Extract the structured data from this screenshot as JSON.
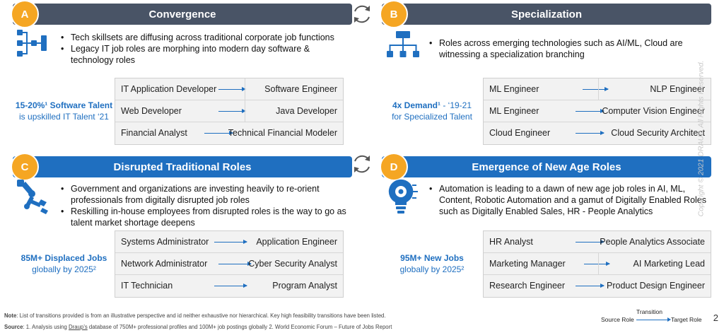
{
  "quadrants": [
    {
      "letter": "A",
      "title": "Convergence",
      "bullets": [
        "Tech skillsets are diffusing across traditional corporate job functions",
        "Legacy IT job roles are morphing into modern day software & technology roles"
      ],
      "stat_bold": "15-20%¹ Software Talent",
      "stat_rest": "is upskilled IT Talent ‘21",
      "rows": [
        {
          "source": "IT Application Developer",
          "target": "Software Engineer"
        },
        {
          "source": "Web Developer",
          "target": "Java Developer"
        },
        {
          "source": "Financial Analyst",
          "target": "Technical Financial Modeler"
        }
      ]
    },
    {
      "letter": "B",
      "title": "Specialization",
      "bullets": [
        "Roles across emerging technologies such as AI/ML, Cloud are witnessing a specialization branching"
      ],
      "stat_bold": "4x Demand¹",
      "stat_bold_suffix": " - ‘19-21",
      "stat_rest": "for Specialized Talent",
      "rows": [
        {
          "source": "ML Engineer",
          "target": "NLP Engineer"
        },
        {
          "source": "ML Engineer",
          "target": "Computer Vision Engineer"
        },
        {
          "source": "Cloud Engineer",
          "target": "Cloud Security Architect"
        }
      ]
    },
    {
      "letter": "C",
      "title": "Disrupted Traditional Roles",
      "bullets": [
        "Government and organizations are investing heavily to re-orient professionals from digitally disrupted job roles",
        "Reskilling in-house employees from disrupted roles is the way to go as talent market shortage deepens"
      ],
      "stat_bold": "85M+ Displaced Jobs",
      "stat_rest": "globally by 2025²",
      "rows": [
        {
          "source": "Systems Administrator",
          "target": "Application Engineer"
        },
        {
          "source": "Network Administrator",
          "target": "Cyber Security Analyst"
        },
        {
          "source": "IT Technician",
          "target": "Program Analyst"
        }
      ]
    },
    {
      "letter": "D",
      "title": "Emergence of New Age Roles",
      "bullets": [
        "Automation is leading to a dawn of new age job roles in AI, ML, Content, Robotic Automation and a gamut of Digitally Enabled Roles such as Digitally Enabled Sales, HR - People Analytics"
      ],
      "stat_bold": "95M+ New Jobs",
      "stat_rest": "globally by 2025²",
      "rows": [
        {
          "source": "HR Analyst",
          "target": "People Analytics Associate"
        },
        {
          "source": "Marketing Manager",
          "target": "AI Marketing Lead"
        },
        {
          "source": "Research Engineer",
          "target": "Product Design Engineer"
        }
      ]
    }
  ],
  "footer": {
    "note_label": "Note",
    "note_text": ": List of transitions provided is from an illustrative perspective and id neither exhaustive nor hierarchical. Key high feasibility transitions have been listed.",
    "source_label": "Source",
    "source_pre": ": 1. Analysis using ",
    "source_link": "Draup’s",
    "source_post": " database of 750M+ professional profiles and 100M+ job postings globally 2. World Economic Forum – Future of Jobs Report"
  },
  "legend": {
    "transition": "Transition",
    "source_role": "Source Role",
    "target_role": "Target Role"
  },
  "page_number": "2",
  "copyright": "Copyright © 2021 DRAUP. All Rights Reserved.",
  "colors": {
    "banner_gray": "#495466",
    "banner_blue": "#1f6fc0",
    "badge": "#f5a623",
    "accent": "#1f6fc0"
  },
  "icons": [
    "convergence-flow-icon",
    "hierarchy-branch-icon",
    "robot-arm-icon",
    "lightbulb-gear-icon",
    "cycle-arrows-icon"
  ]
}
